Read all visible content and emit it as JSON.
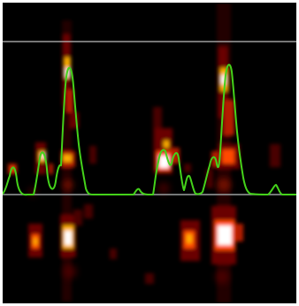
{
  "display": {
    "background_color": "#000000",
    "frame_color": "#ffffff",
    "reference_line_color": "#bdbdbd",
    "baseline_color": "#9aa0a0",
    "trace_color": "#44d21a",
    "heatmap_palette": [
      "#2a0000",
      "#6a0000",
      "#b51a00",
      "#ff4a00",
      "#ffb000",
      "#ffffff"
    ]
  }
}
